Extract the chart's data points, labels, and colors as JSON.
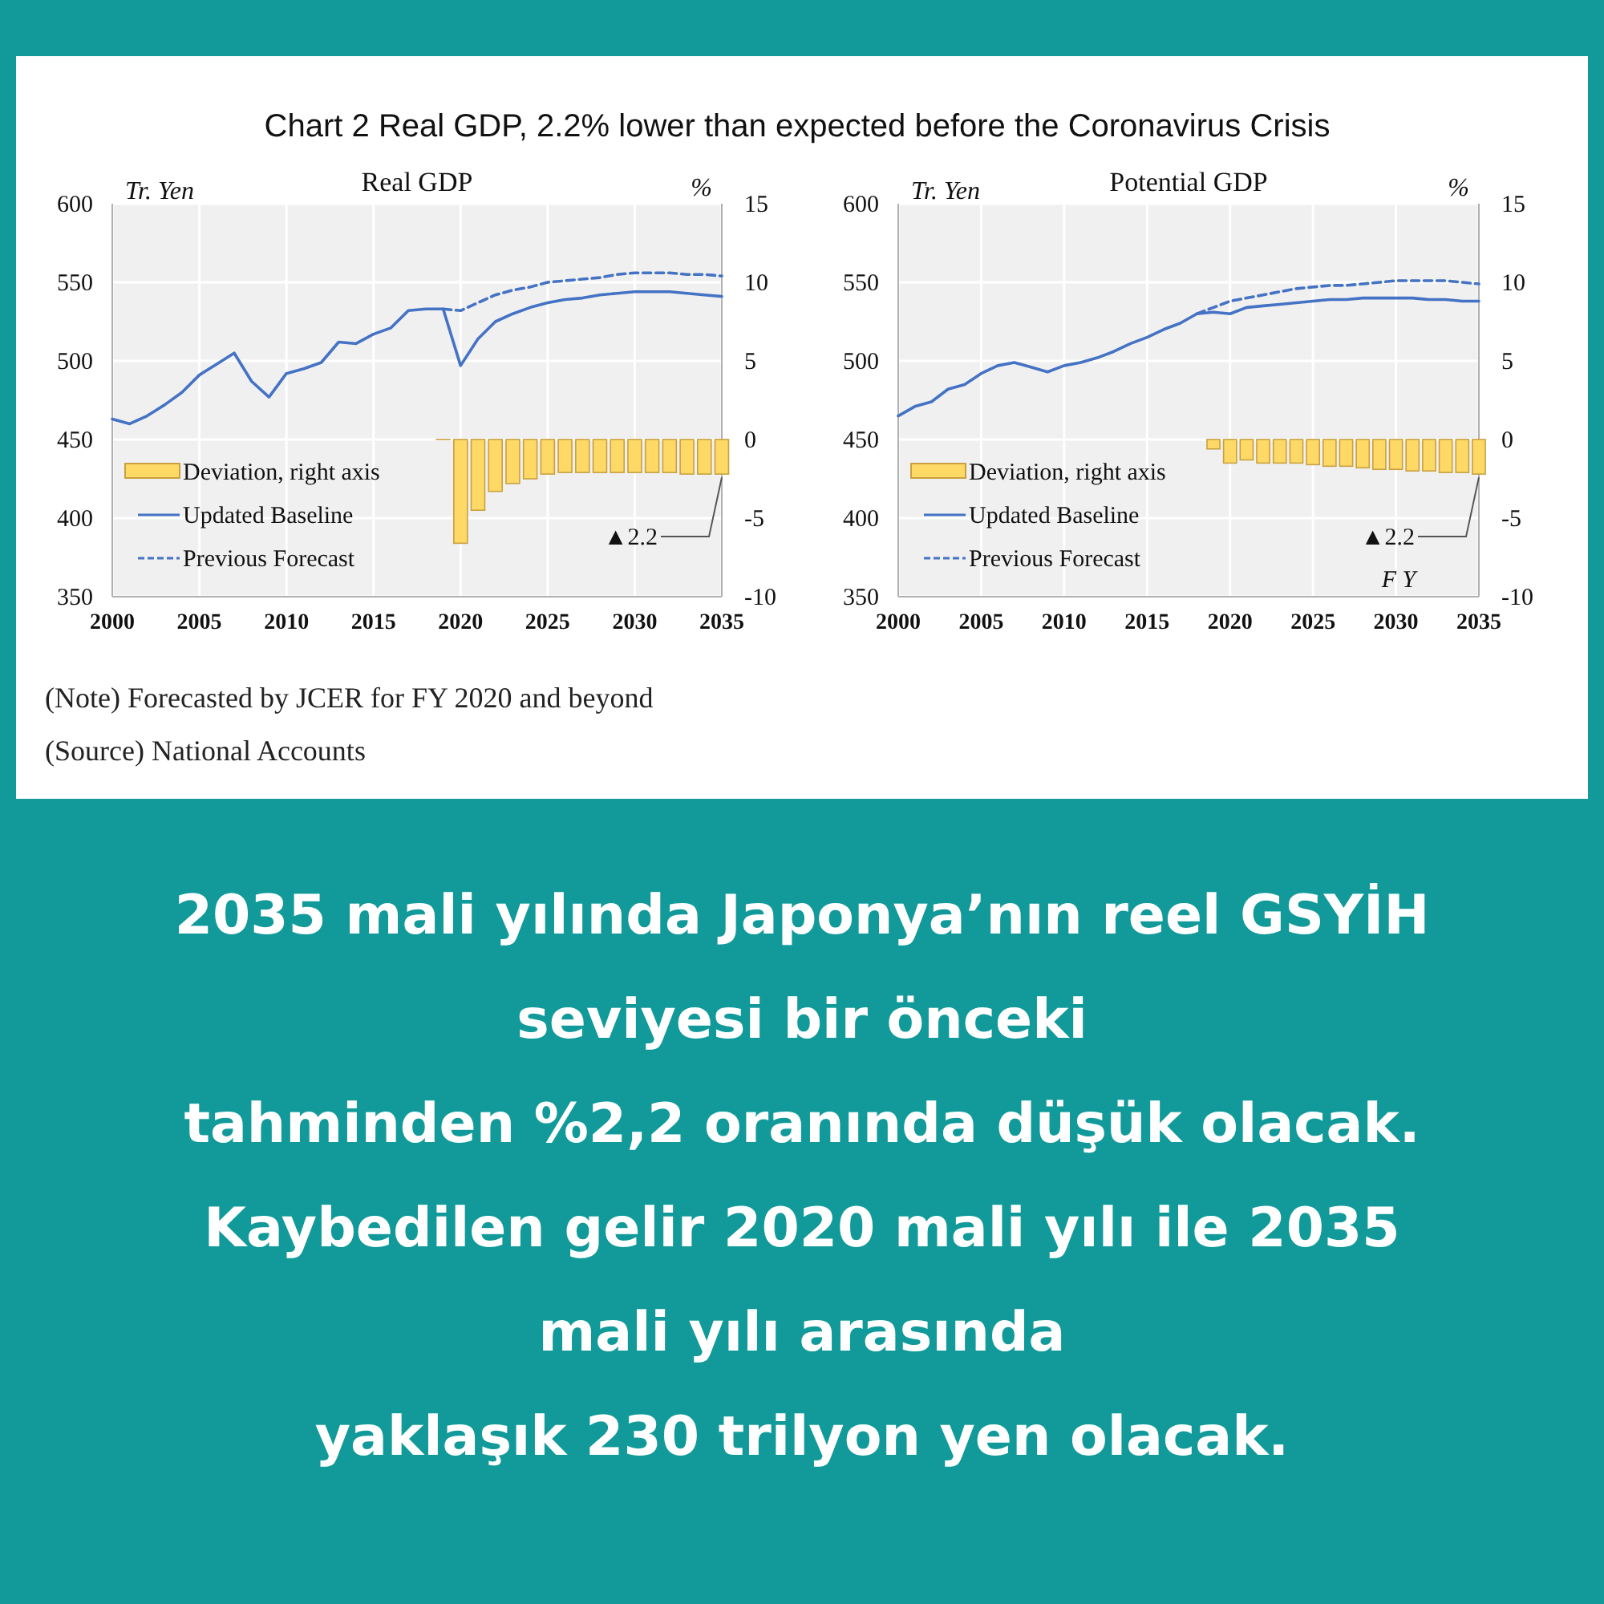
{
  "chart_data": [
    {
      "type": "other",
      "title": "Chart 2 Real GDP, 2.2% lower than expected before the Coronavirus Crisis"
    },
    {
      "type": "line",
      "title": "Real GDP",
      "ylabel": "Tr. Yen",
      "y2label": "%",
      "xlim": [
        2000,
        2035
      ],
      "xticks": [
        2000,
        2005,
        2010,
        2015,
        2020,
        2025,
        2030,
        2035
      ],
      "ylim": [
        350,
        600
      ],
      "yticks": [
        350,
        400,
        450,
        500,
        550,
        600
      ],
      "y2lim": [
        -10,
        15
      ],
      "y2ticks": [
        -10,
        -5,
        0,
        5,
        10,
        15
      ],
      "grid": true,
      "legend": "bottom left",
      "marker": "none",
      "annotations": [
        "▲2.2"
      ],
      "series": [
        {
          "name": "Deviation, right axis",
          "type": "bar",
          "axis": "y2",
          "color": "#ffd966",
          "x": [
            2019,
            2020,
            2021,
            2022,
            2023,
            2024,
            2025,
            2026,
            2027,
            2028,
            2029,
            2030,
            2031,
            2032,
            2033,
            2034,
            2035
          ],
          "values": [
            0,
            -6.6,
            -4.5,
            -3.3,
            -2.8,
            -2.5,
            -2.2,
            -2.1,
            -2.1,
            -2.1,
            -2.1,
            -2.1,
            -2.1,
            -2.1,
            -2.2,
            -2.2,
            -2.2
          ]
        },
        {
          "name": "Updated Baseline",
          "type": "line",
          "line_style": "solid",
          "color": "#4472c4",
          "x": [
            2000,
            2001,
            2002,
            2003,
            2004,
            2005,
            2006,
            2007,
            2008,
            2009,
            2010,
            2011,
            2012,
            2013,
            2014,
            2015,
            2016,
            2017,
            2018,
            2019,
            2020,
            2021,
            2022,
            2023,
            2024,
            2025,
            2026,
            2027,
            2028,
            2029,
            2030,
            2031,
            2032,
            2033,
            2034,
            2035
          ],
          "values": [
            463,
            460,
            465,
            472,
            480,
            491,
            498,
            505,
            487,
            477,
            492,
            495,
            499,
            512,
            511,
            517,
            521,
            532,
            533,
            533,
            497,
            514,
            525,
            530,
            534,
            537,
            539,
            540,
            542,
            543,
            544,
            544,
            544,
            543,
            542,
            541
          ]
        },
        {
          "name": "Previous Forecast",
          "type": "line",
          "line_style": "dashed",
          "color": "#4472c4",
          "x": [
            2019,
            2020,
            2021,
            2022,
            2023,
            2024,
            2025,
            2026,
            2027,
            2028,
            2029,
            2030,
            2031,
            2032,
            2033,
            2034,
            2035
          ],
          "values": [
            533,
            532,
            537,
            542,
            545,
            547,
            550,
            551,
            552,
            553,
            555,
            556,
            556,
            556,
            555,
            555,
            554
          ]
        }
      ]
    },
    {
      "type": "line",
      "title": "Potential GDP",
      "ylabel": "Tr. Yen",
      "y2label": "%",
      "xlabel": "F Y",
      "xlim": [
        2000,
        2035
      ],
      "xticks": [
        2000,
        2005,
        2010,
        2015,
        2020,
        2025,
        2030,
        2035
      ],
      "ylim": [
        350,
        600
      ],
      "yticks": [
        350,
        400,
        450,
        500,
        550,
        600
      ],
      "y2lim": [
        -10,
        15
      ],
      "y2ticks": [
        -10,
        -5,
        0,
        5,
        10,
        15
      ],
      "grid": true,
      "legend": "bottom left",
      "marker": "none",
      "annotations": [
        "▲2.2"
      ],
      "series": [
        {
          "name": "Deviation, right axis",
          "type": "bar",
          "axis": "y2",
          "color": "#ffd966",
          "x": [
            2019,
            2020,
            2021,
            2022,
            2023,
            2024,
            2025,
            2026,
            2027,
            2028,
            2029,
            2030,
            2031,
            2032,
            2033,
            2034,
            2035
          ],
          "values": [
            -0.6,
            -1.5,
            -1.3,
            -1.5,
            -1.5,
            -1.5,
            -1.6,
            -1.7,
            -1.7,
            -1.8,
            -1.9,
            -1.9,
            -2.0,
            -2.0,
            -2.1,
            -2.1,
            -2.2
          ]
        },
        {
          "name": "Updated Baseline",
          "type": "line",
          "line_style": "solid",
          "color": "#4472c4",
          "x": [
            2000,
            2001,
            2002,
            2003,
            2004,
            2005,
            2006,
            2007,
            2008,
            2009,
            2010,
            2011,
            2012,
            2013,
            2014,
            2015,
            2016,
            2017,
            2018,
            2019,
            2020,
            2021,
            2022,
            2023,
            2024,
            2025,
            2026,
            2027,
            2028,
            2029,
            2030,
            2031,
            2032,
            2033,
            2034,
            2035
          ],
          "values": [
            465,
            471,
            474,
            482,
            485,
            492,
            497,
            499,
            496,
            493,
            497,
            499,
            502,
            506,
            511,
            515,
            520,
            524,
            530,
            531,
            530,
            534,
            535,
            536,
            537,
            538,
            539,
            539,
            540,
            540,
            540,
            540,
            539,
            539,
            538,
            538
          ]
        },
        {
          "name": "Previous Forecast",
          "type": "line",
          "line_style": "dashed",
          "color": "#4472c4",
          "x": [
            2018,
            2019,
            2020,
            2021,
            2022,
            2023,
            2024,
            2025,
            2026,
            2027,
            2028,
            2029,
            2030,
            2031,
            2032,
            2033,
            2034,
            2035
          ],
          "values": [
            530,
            534,
            538,
            540,
            542,
            544,
            546,
            547,
            548,
            548,
            549,
            550,
            551,
            551,
            551,
            551,
            550,
            549
          ]
        }
      ]
    },
    {
      "type": "other",
      "annotations": [
        "(Note) Forecasted by JCER for FY 2020 and beyond",
        "(Source) National Accounts"
      ]
    },
    {
      "type": "other",
      "annotations": [
        "2035 mali yılında Japonya’nın reel GSYİH",
        "seviyesi bir önceki",
        "tahminden %2,2 oranında düşük olacak.",
        "Kaybedilen gelir 2020 mali yılı ile 2035",
        "mali yılı arasında",
        "yaklaşık 230 trilyon yen olacak."
      ]
    }
  ]
}
